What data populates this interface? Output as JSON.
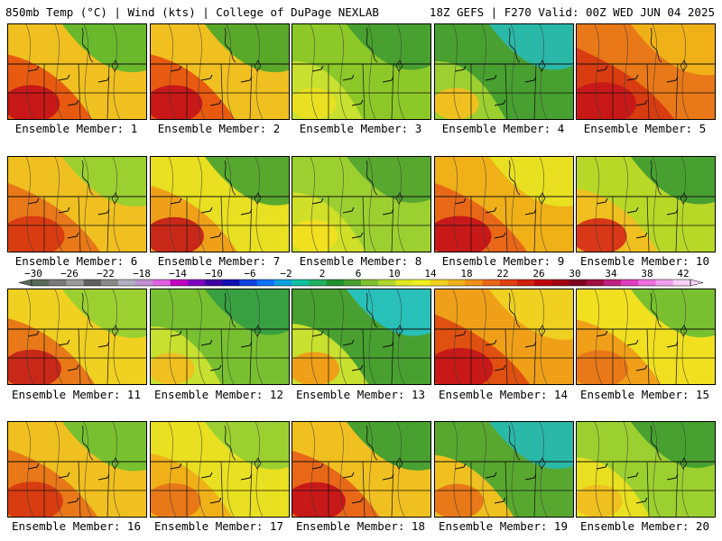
{
  "header": {
    "left": "850mb Temp (°C) | Wind (kts) | College of DuPage NEXLAB",
    "right": "18Z GEFS | F270 Valid: 00Z WED JUN 04 2025"
  },
  "members": [
    {
      "label": "Ensemble Member: 1",
      "palette": [
        "#6ab82c",
        "#f0c020",
        "#e85a10",
        "#c81818"
      ],
      "warmth": 0.55
    },
    {
      "label": "Ensemble Member: 2",
      "palette": [
        "#5aa82a",
        "#f0c020",
        "#e85a10",
        "#c81818"
      ],
      "warmth": 0.55
    },
    {
      "label": "Ensemble Member: 3",
      "palette": [
        "#48a030",
        "#8cc828",
        "#c8e030",
        "#e8e020"
      ],
      "warmth": 0.3
    },
    {
      "label": "Ensemble Member: 4",
      "palette": [
        "#2ab8a8",
        "#48a030",
        "#9cd030",
        "#f0c020"
      ],
      "warmth": 0.3
    },
    {
      "label": "Ensemble Member: 5",
      "palette": [
        "#f0b018",
        "#e87818",
        "#d83c10",
        "#c81818"
      ],
      "warmth": 0.8
    },
    {
      "label": "Ensemble Member: 6",
      "palette": [
        "#9cd030",
        "#f0c020",
        "#e87818",
        "#d83c10"
      ],
      "warmth": 0.7
    },
    {
      "label": "Ensemble Member: 7",
      "palette": [
        "#58a830",
        "#e8e020",
        "#f0a018",
        "#c82818"
      ],
      "warmth": 0.6
    },
    {
      "label": "Ensemble Member: 8",
      "palette": [
        "#58a830",
        "#9cd030",
        "#d0e028",
        "#f0e020"
      ],
      "warmth": 0.35
    },
    {
      "label": "Ensemble Member: 9",
      "palette": [
        "#e8e020",
        "#f0b018",
        "#e86818",
        "#c81818"
      ],
      "warmth": 0.7
    },
    {
      "label": "Ensemble Member: 10",
      "palette": [
        "#48a030",
        "#b8d828",
        "#f0c020",
        "#d83818"
      ],
      "warmth": 0.5
    },
    {
      "label": "Ensemble Member: 11",
      "palette": [
        "#9cd030",
        "#f0d020",
        "#e87818",
        "#c82818"
      ],
      "warmth": 0.6
    },
    {
      "label": "Ensemble Member: 12",
      "palette": [
        "#38a040",
        "#78c030",
        "#c8e030",
        "#f0c020"
      ],
      "warmth": 0.3
    },
    {
      "label": "Ensemble Member: 13",
      "palette": [
        "#28c0b8",
        "#48a030",
        "#c8e030",
        "#f0a018"
      ],
      "warmth": 0.4
    },
    {
      "label": "Ensemble Member: 14",
      "palette": [
        "#f0d020",
        "#f0a018",
        "#e05010",
        "#c81818"
      ],
      "warmth": 0.75
    },
    {
      "label": "Ensemble Member: 15",
      "palette": [
        "#78c030",
        "#f0e020",
        "#f0a018",
        "#e87818"
      ],
      "warmth": 0.55
    },
    {
      "label": "Ensemble Member: 16",
      "palette": [
        "#78c030",
        "#f0c020",
        "#e87818",
        "#d83c10"
      ],
      "warmth": 0.65
    },
    {
      "label": "Ensemble Member: 17",
      "palette": [
        "#9cd030",
        "#e8e020",
        "#f0b018",
        "#e87818"
      ],
      "warmth": 0.5
    },
    {
      "label": "Ensemble Member: 18",
      "palette": [
        "#48a030",
        "#f0c020",
        "#e86818",
        "#c81818"
      ],
      "warmth": 0.6
    },
    {
      "label": "Ensemble Member: 19",
      "palette": [
        "#2ab8a8",
        "#58a830",
        "#f0c020",
        "#e87818"
      ],
      "warmth": 0.45
    },
    {
      "label": "Ensemble Member: 20",
      "palette": [
        "#48a030",
        "#9cd030",
        "#e8e020",
        "#f0c020"
      ],
      "warmth": 0.35
    }
  ],
  "colorbar": {
    "ticks": [
      "-30",
      "-26",
      "-22",
      "-18",
      "-14",
      "-10",
      "-6",
      "-2",
      "2",
      "6",
      "10",
      "14",
      "18",
      "22",
      "26",
      "30",
      "34",
      "38",
      "42"
    ],
    "colors": [
      "#5a6a5a",
      "#7a7a7a",
      "#9a9a9a",
      "#606060",
      "#8a8a8a",
      "#b0b0c0",
      "#c090d0",
      "#e060e0",
      "#c000c0",
      "#8000c0",
      "#4000a0",
      "#1010b0",
      "#1040e0",
      "#1070ff",
      "#10a0e0",
      "#10c0a0",
      "#20b060",
      "#209030",
      "#48a030",
      "#80c030",
      "#b0d830",
      "#e0e820",
      "#f0f020",
      "#f0d020",
      "#f0b018",
      "#f09018",
      "#e86818",
      "#e04010",
      "#d02010",
      "#c00010",
      "#a00010",
      "#800020",
      "#a01040",
      "#c02080",
      "#e040c0",
      "#f070e0",
      "#f0a0f0",
      "#f8d0f8"
    ]
  }
}
